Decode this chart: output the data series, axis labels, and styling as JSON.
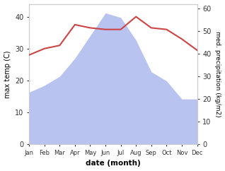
{
  "months": [
    "Jan",
    "Feb",
    "Mar",
    "Apr",
    "May",
    "Jun",
    "Jul",
    "Aug",
    "Sep",
    "Oct",
    "Nov",
    "Dec"
  ],
  "month_indices": [
    1,
    2,
    3,
    4,
    5,
    6,
    7,
    8,
    9,
    10,
    11,
    12
  ],
  "temp": [
    28,
    30,
    31,
    37.5,
    36.5,
    36,
    36,
    40,
    36.5,
    36,
    33,
    29.5
  ],
  "precip": [
    23,
    26,
    30,
    38,
    48,
    58,
    56,
    46,
    32,
    28,
    20,
    20
  ],
  "temp_color": "#cc4444",
  "precip_color": "#b8c4ef",
  "temp_ylim": [
    0,
    44
  ],
  "precip_ylim": [
    0,
    62
  ],
  "temp_yticks": [
    0,
    10,
    20,
    30,
    40
  ],
  "precip_yticks": [
    0,
    10,
    20,
    30,
    40,
    50,
    60
  ],
  "xlabel": "date (month)",
  "ylabel_left": "max temp (C)",
  "ylabel_right": "med. precipitation (kg/m2)",
  "bg_color": "#ffffff"
}
